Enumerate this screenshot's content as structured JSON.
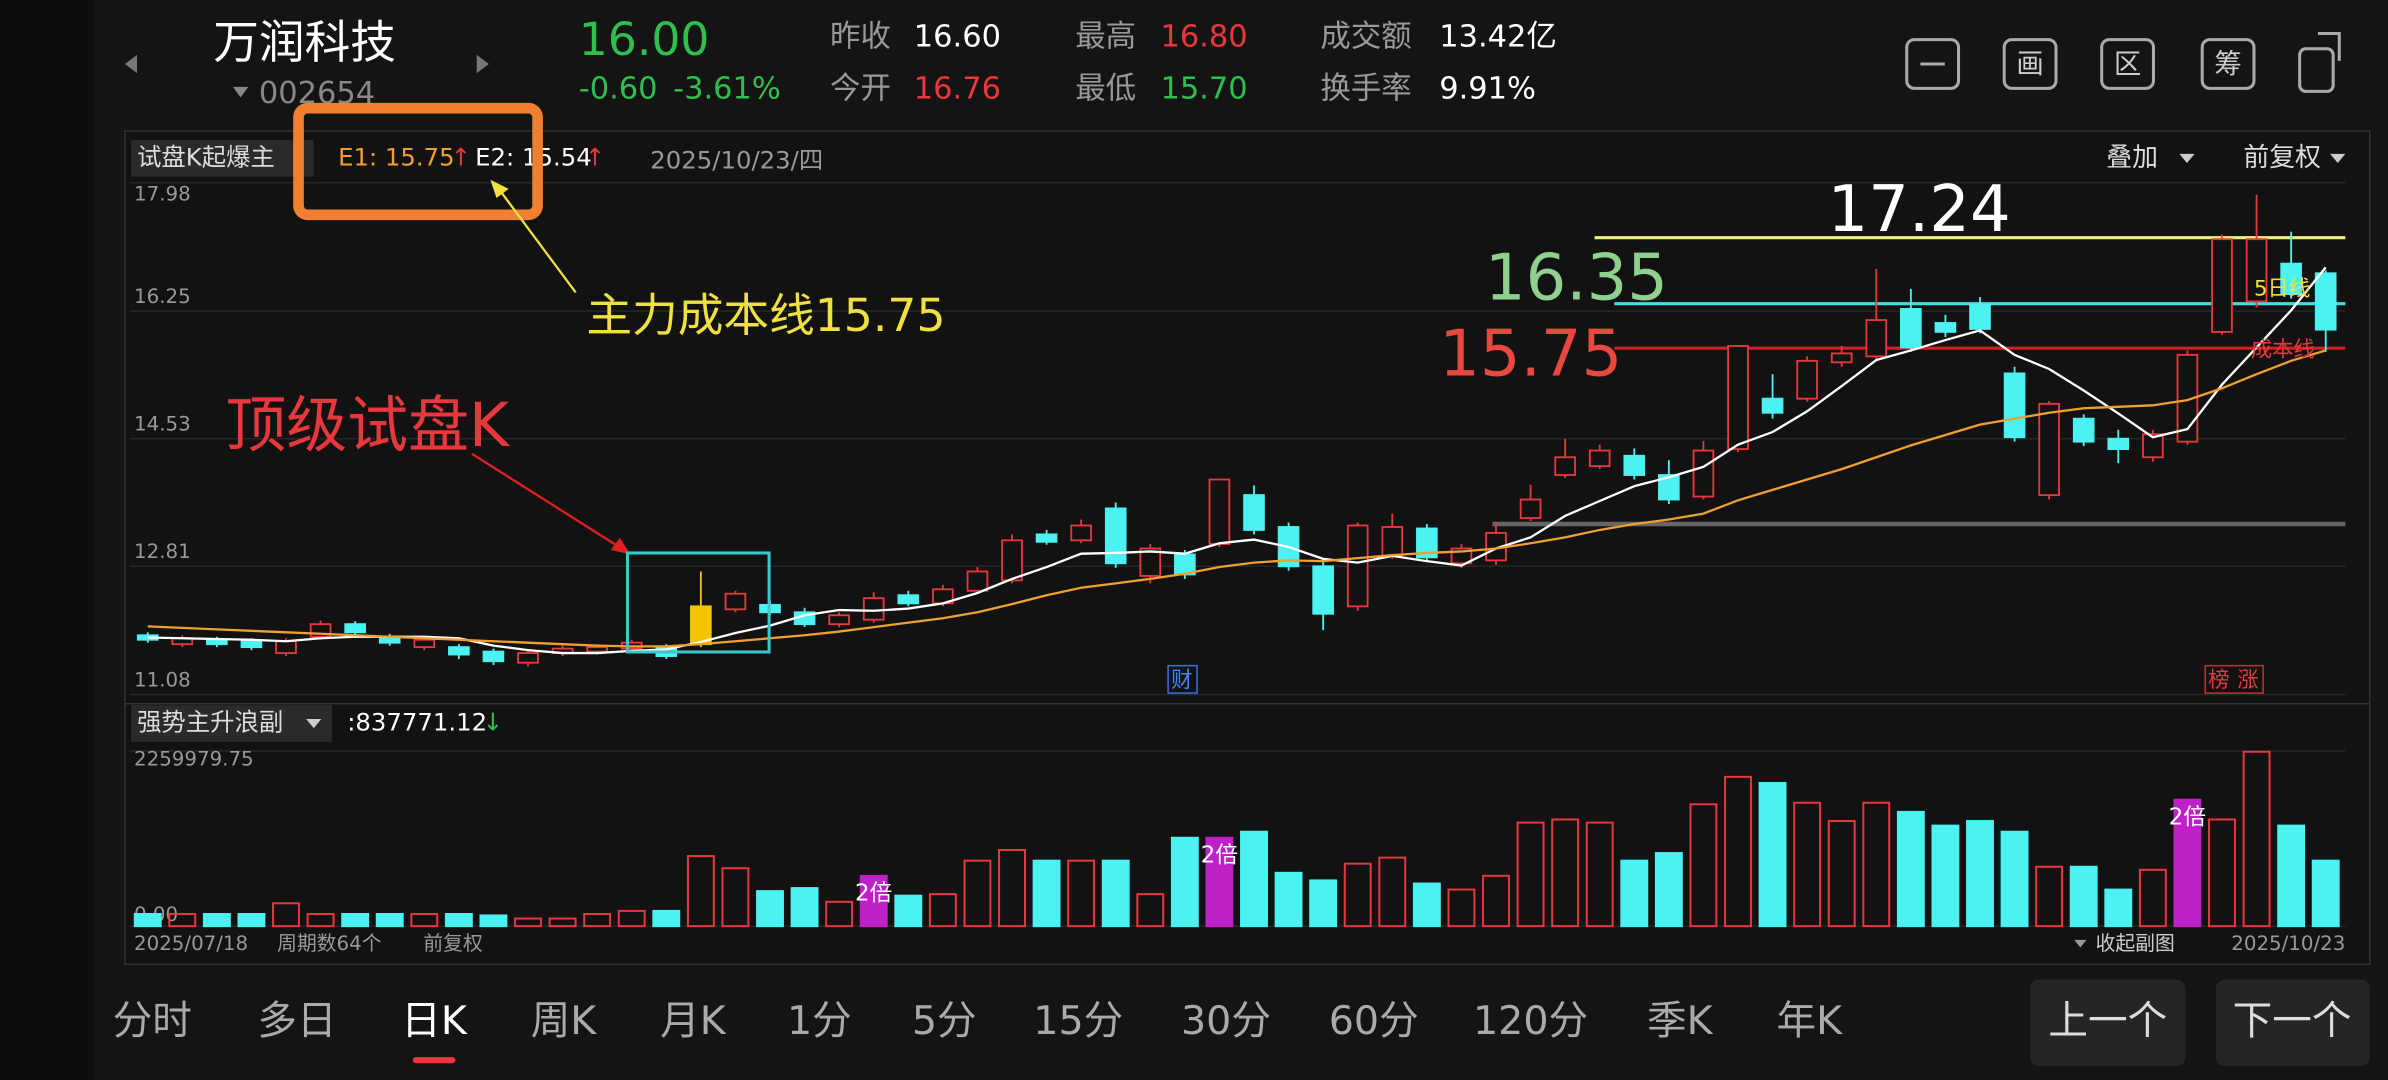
{
  "header": {
    "name": "万润科技",
    "code": "002654",
    "price": "16.00",
    "change": "-0.60",
    "change_pct": "-3.61%",
    "prev_close_label": "昨收",
    "prev_close": "16.60",
    "open_label": "今开",
    "open": "16.76",
    "high_label": "最高",
    "high": "16.80",
    "low_label": "最低",
    "low": "15.70",
    "amount_label": "成交额",
    "amount": "13.42亿",
    "turnover_label": "换手率",
    "turnover": "9.91%",
    "icons": [
      "画",
      "区",
      "筹"
    ]
  },
  "toolbar": {
    "indicator": "试盘K起爆主",
    "e1": "E1: 15.75",
    "e1_arrow": "↑",
    "e2": "E2: 15.54",
    "e2_arrow": "↑",
    "date": "2025/10/23/四",
    "overlay": "叠加",
    "adjust": "前复权"
  },
  "annotations": {
    "cost_line": "主力成本线15.75",
    "trial_k": "顶级试盘K",
    "ma5_tag": "5日线",
    "cost_tag": "成本线",
    "cai": "财",
    "bang": "榜",
    "zhang": "涨"
  },
  "chart_data": {
    "type": "candlestick",
    "ylim": [
      11.08,
      17.98
    ],
    "yticks": [
      17.98,
      16.25,
      14.53,
      12.81,
      11.08
    ],
    "up_color": "#e8383d",
    "down_color": "#4cf2f2",
    "candle_fill": [
      null,
      null,
      null,
      null,
      null,
      null,
      null,
      null,
      null,
      null,
      null,
      null,
      null,
      null,
      null,
      null,
      "#f5c400",
      null,
      null,
      null,
      null,
      null,
      null,
      null,
      null,
      null,
      null,
      null,
      null,
      null,
      null,
      null,
      null,
      null,
      null,
      null,
      null,
      null,
      null,
      null,
      null,
      null,
      null,
      null,
      null,
      null,
      null,
      null,
      null,
      null,
      null,
      null,
      null,
      null,
      null,
      null,
      null,
      null,
      null,
      null,
      null,
      null,
      null,
      null
    ],
    "ohlc": [
      [
        11.88,
        11.92,
        11.78,
        11.82
      ],
      [
        11.76,
        11.88,
        11.72,
        11.84
      ],
      [
        11.82,
        11.86,
        11.72,
        11.76
      ],
      [
        11.8,
        11.84,
        11.68,
        11.72
      ],
      [
        11.64,
        11.84,
        11.6,
        11.8
      ],
      [
        11.86,
        12.08,
        11.82,
        12.03
      ],
      [
        12.03,
        12.07,
        11.88,
        11.92
      ],
      [
        11.86,
        11.9,
        11.74,
        11.78
      ],
      [
        11.72,
        11.86,
        11.68,
        11.82
      ],
      [
        11.72,
        11.76,
        11.56,
        11.62
      ],
      [
        11.66,
        11.7,
        11.48,
        11.53
      ],
      [
        11.51,
        11.68,
        11.46,
        11.64
      ],
      [
        11.64,
        11.74,
        11.6,
        11.7
      ],
      [
        11.66,
        11.76,
        11.62,
        11.72
      ],
      [
        11.7,
        11.82,
        11.66,
        11.78
      ],
      [
        11.72,
        11.76,
        11.56,
        11.6
      ],
      [
        11.76,
        12.74,
        11.72,
        12.27
      ],
      [
        12.23,
        12.48,
        12.19,
        12.44
      ],
      [
        12.29,
        12.35,
        12.15,
        12.19
      ],
      [
        12.19,
        12.25,
        11.99,
        12.03
      ],
      [
        12.03,
        12.19,
        11.99,
        12.15
      ],
      [
        12.09,
        12.46,
        12.05,
        12.38
      ],
      [
        12.42,
        12.48,
        12.27,
        12.31
      ],
      [
        12.31,
        12.56,
        12.27,
        12.5
      ],
      [
        12.48,
        12.8,
        12.44,
        12.74
      ],
      [
        12.62,
        13.24,
        12.58,
        13.16
      ],
      [
        13.24,
        13.3,
        13.1,
        13.14
      ],
      [
        13.16,
        13.44,
        13.12,
        13.36
      ],
      [
        13.59,
        13.67,
        12.79,
        12.85
      ],
      [
        12.68,
        13.11,
        12.58,
        13.05
      ],
      [
        12.97,
        13.03,
        12.64,
        12.7
      ],
      [
        13.11,
        13.98,
        13.07,
        13.98
      ],
      [
        13.77,
        13.9,
        13.24,
        13.3
      ],
      [
        13.34,
        13.4,
        12.75,
        12.81
      ],
      [
        12.81,
        12.87,
        11.95,
        12.17
      ],
      [
        12.27,
        13.4,
        12.21,
        13.36
      ],
      [
        12.95,
        13.52,
        12.91,
        13.34
      ],
      [
        13.32,
        13.38,
        12.87,
        12.93
      ],
      [
        12.85,
        13.11,
        12.79,
        13.05
      ],
      [
        12.89,
        13.4,
        12.83,
        13.26
      ],
      [
        13.46,
        13.91,
        13.42,
        13.71
      ],
      [
        14.04,
        14.53,
        14.0,
        14.28
      ],
      [
        14.16,
        14.45,
        14.12,
        14.37
      ],
      [
        14.3,
        14.4,
        13.98,
        14.04
      ],
      [
        14.04,
        14.24,
        13.65,
        13.71
      ],
      [
        13.75,
        14.5,
        13.71,
        14.37
      ],
      [
        14.39,
        15.78,
        14.35,
        15.78
      ],
      [
        15.07,
        15.4,
        14.8,
        14.88
      ],
      [
        15.07,
        15.64,
        15.03,
        15.58
      ],
      [
        15.56,
        15.78,
        15.5,
        15.68
      ],
      [
        15.64,
        16.82,
        15.6,
        16.13
      ],
      [
        16.28,
        16.55,
        15.7,
        15.76
      ],
      [
        16.09,
        16.2,
        15.9,
        15.97
      ],
      [
        16.34,
        16.44,
        15.95,
        16.01
      ],
      [
        15.41,
        15.5,
        14.49,
        14.55
      ],
      [
        13.77,
        15.04,
        13.71,
        15.0
      ],
      [
        14.8,
        14.86,
        14.43,
        14.49
      ],
      [
        14.53,
        14.65,
        14.2,
        14.39
      ],
      [
        14.28,
        14.65,
        14.22,
        14.59
      ],
      [
        14.49,
        15.72,
        14.45,
        15.66
      ],
      [
        15.97,
        17.28,
        15.93,
        17.22
      ],
      [
        16.38,
        17.82,
        16.3,
        17.22
      ],
      [
        16.89,
        17.32,
        16.42,
        16.48
      ],
      [
        16.76,
        16.8,
        15.7,
        16.0
      ]
    ],
    "ma": [
      {
        "color": "#ffffff",
        "values": [
          11.85,
          11.84,
          11.83,
          11.82,
          11.8,
          11.84,
          11.86,
          11.86,
          11.86,
          11.84,
          11.74,
          11.68,
          11.64,
          11.64,
          11.67,
          11.69,
          11.79,
          11.91,
          12.01,
          12.15,
          12.22,
          12.21,
          12.24,
          12.31,
          12.45,
          12.64,
          12.8,
          12.98,
          12.99,
          13.01,
          12.98,
          13.12,
          13.17,
          13.07,
          12.91,
          12.86,
          12.95,
          12.88,
          12.82,
          13.05,
          13.2,
          13.49,
          13.69,
          13.89,
          14.01,
          14.15,
          14.45,
          14.62,
          14.9,
          15.24,
          15.59,
          15.72,
          15.86,
          15.99,
          15.66,
          15.47,
          15.18,
          14.87,
          14.55,
          14.66,
          15.26,
          15.76,
          16.26,
          16.84
        ]
      },
      {
        "color": "#f0a030",
        "values": [
          12.0,
          11.98,
          11.96,
          11.94,
          11.92,
          11.9,
          11.88,
          11.86,
          11.84,
          11.82,
          11.8,
          11.78,
          11.76,
          11.74,
          11.73,
          11.73,
          11.76,
          11.8,
          11.84,
          11.88,
          11.93,
          11.99,
          12.05,
          12.11,
          12.19,
          12.3,
          12.42,
          12.52,
          12.58,
          12.64,
          12.71,
          12.8,
          12.86,
          12.89,
          12.88,
          12.92,
          12.96,
          12.99,
          13.01,
          13.05,
          13.12,
          13.2,
          13.3,
          13.38,
          13.44,
          13.52,
          13.7,
          13.84,
          13.98,
          14.12,
          14.28,
          14.44,
          14.58,
          14.72,
          14.8,
          14.88,
          14.94,
          14.96,
          14.98,
          15.05,
          15.21,
          15.4,
          15.58,
          15.72
        ]
      }
    ],
    "levels": [
      {
        "value": 17.24,
        "color": "#f0f080",
        "text_color": "#ffffff"
      },
      {
        "value": 16.35,
        "color": "#40e0e0",
        "text_color": "#8fd08f"
      },
      {
        "value": 15.75,
        "color": "#d02020",
        "text_color": "#e8483d"
      }
    ],
    "support_line": {
      "value": 13.38,
      "color": "#666666"
    },
    "volume": {
      "title": "强势主升浪副",
      "readout": ":837771.12",
      "readout_arrow": "↓",
      "ylim": [
        0,
        2259979.75
      ],
      "yticks": [
        2259979.75,
        {
          "value": 0,
          "label": "0.00"
        }
      ],
      "tag_color": "#c020c8",
      "values": [
        157000,
        157000,
        157000,
        157000,
        295000,
        157000,
        157000,
        157000,
        157000,
        157000,
        138000,
        98000,
        98000,
        157000,
        197000,
        197000,
        904000,
        747000,
        452000,
        491000,
        314000,
        649000,
        393000,
        413000,
        845000,
        983000,
        845000,
        845000,
        845000,
        413000,
        1140000,
        1140000,
        1218000,
        688000,
        590000,
        806000,
        884000,
        550000,
        472000,
        649000,
        1336000,
        1376000,
        1336000,
        845000,
        943000,
        1572000,
        1926000,
        1847000,
        1592000,
        1356000,
        1592000,
        1474000,
        1297000,
        1356000,
        1218000,
        766000,
        766000,
        472000,
        727000,
        1631000,
        1376000,
        2250000,
        1297000,
        845000
      ],
      "tags": [
        null,
        null,
        null,
        null,
        null,
        null,
        null,
        null,
        null,
        null,
        null,
        null,
        null,
        null,
        null,
        null,
        null,
        null,
        null,
        null,
        null,
        "2倍",
        null,
        null,
        null,
        null,
        null,
        null,
        null,
        null,
        null,
        "2倍",
        null,
        null,
        null,
        null,
        null,
        null,
        null,
        null,
        null,
        null,
        null,
        null,
        null,
        null,
        null,
        null,
        null,
        null,
        null,
        null,
        null,
        null,
        null,
        null,
        null,
        null,
        null,
        "2倍",
        null,
        null,
        null,
        null
      ]
    },
    "start_date": "2025/07/18",
    "period_count": "周期数64个",
    "adjust": "前复权",
    "collapse": "收起副图",
    "end_date": "2025/10/23"
  },
  "tabs": [
    "分时",
    "多日",
    "日K",
    "周K",
    "月K",
    "1分",
    "5分",
    "15分",
    "30分",
    "60分",
    "120分",
    "季K",
    "年K"
  ],
  "selected_tab": 2,
  "buttons": [
    "上一个",
    "下一个"
  ]
}
